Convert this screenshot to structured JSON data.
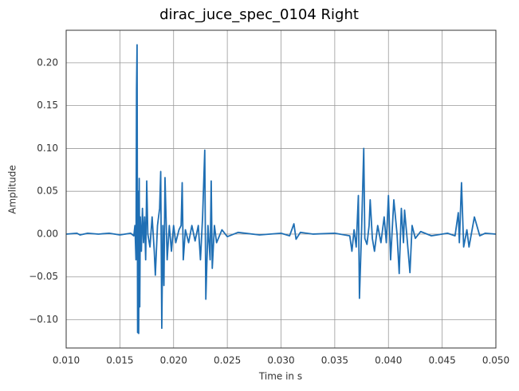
{
  "chart_data": {
    "type": "line",
    "title": "dirac_juce_spec_0104 Right",
    "xlabel": "Time in s",
    "ylabel": "Amplitude",
    "color": "#1f6fb4",
    "grid": true,
    "xlim": [
      0.01,
      0.05
    ],
    "ylim": [
      -0.133,
      0.238
    ],
    "xticks": [
      {
        "value": 0.01,
        "label": "0.010"
      },
      0.015,
      {
        "value": 0.02,
        "label": "0.020"
      },
      0.025,
      {
        "value": 0.03,
        "label": "0.030"
      },
      0.035,
      {
        "value": 0.04,
        "label": "0.040"
      },
      0.045,
      {
        "value": 0.05,
        "label": "0.050"
      }
    ],
    "yticks": [
      {
        "value": -0.1,
        "label": "−0.10"
      },
      {
        "value": -0.05,
        "label": "−0.05"
      },
      {
        "value": 0,
        "label": "0.00"
      },
      0.05,
      {
        "value": 0.1,
        "label": "0.10"
      },
      0.15,
      {
        "value": 0.2,
        "label": "0.20"
      }
    ],
    "x": [
      0.01,
      0.011,
      0.0113,
      0.012,
      0.013,
      0.014,
      0.015,
      0.016,
      0.0163,
      0.0164,
      0.0165,
      0.01655,
      0.0166,
      0.01665,
      0.0167,
      0.01675,
      0.0168,
      0.01685,
      0.0169,
      0.017,
      0.0171,
      0.0172,
      0.0173,
      0.0174,
      0.0175,
      0.0176,
      0.0178,
      0.018,
      0.0182,
      0.0183,
      0.0185,
      0.0187,
      0.0188,
      0.0189,
      0.019,
      0.0191,
      0.0192,
      0.0194,
      0.0196,
      0.0198,
      0.02,
      0.0202,
      0.0205,
      0.0207,
      0.0208,
      0.0209,
      0.0211,
      0.0214,
      0.0217,
      0.022,
      0.0223,
      0.0225,
      0.0227,
      0.0229,
      0.023,
      0.0232,
      0.0234,
      0.0235,
      0.0236,
      0.0238,
      0.024,
      0.0245,
      0.025,
      0.026,
      0.028,
      0.03,
      0.0308,
      0.0312,
      0.0314,
      0.0318,
      0.033,
      0.035,
      0.0364,
      0.0366,
      0.0368,
      0.037,
      0.0372,
      0.0373,
      0.0375,
      0.0377,
      0.0378,
      0.038,
      0.0382,
      0.0383,
      0.0385,
      0.0387,
      0.039,
      0.0393,
      0.0396,
      0.0398,
      0.04,
      0.0402,
      0.0405,
      0.0408,
      0.041,
      0.0412,
      0.0414,
      0.0415,
      0.0417,
      0.042,
      0.0422,
      0.0425,
      0.043,
      0.044,
      0.0455,
      0.0462,
      0.0465,
      0.0466,
      0.0468,
      0.047,
      0.0473,
      0.0475,
      0.048,
      0.0485,
      0.049,
      0.05
    ],
    "values": [
      0.0,
      0.001,
      -0.001,
      0.001,
      0.0,
      0.001,
      -0.001,
      0.001,
      -0.002,
      0.01,
      -0.03,
      0.17,
      0.221,
      -0.115,
      0.05,
      -0.116,
      0.065,
      -0.085,
      0.02,
      -0.02,
      0.03,
      -0.01,
      0.02,
      -0.03,
      0.062,
      0.0,
      -0.015,
      0.02,
      -0.02,
      -0.048,
      0.01,
      0.03,
      0.073,
      -0.11,
      0.01,
      -0.06,
      0.066,
      -0.03,
      0.01,
      -0.02,
      0.01,
      -0.01,
      0.005,
      0.01,
      0.06,
      -0.03,
      0.005,
      -0.01,
      0.01,
      -0.008,
      0.01,
      -0.03,
      0.02,
      0.098,
      -0.076,
      0.01,
      -0.03,
      0.062,
      -0.04,
      0.01,
      -0.01,
      0.005,
      -0.003,
      0.002,
      -0.001,
      0.001,
      -0.002,
      0.012,
      -0.006,
      0.002,
      0.0,
      0.001,
      -0.002,
      -0.02,
      0.005,
      -0.015,
      0.045,
      -0.075,
      0.005,
      0.1,
      -0.005,
      -0.012,
      0.01,
      0.04,
      -0.005,
      -0.02,
      0.01,
      -0.01,
      0.02,
      -0.01,
      0.045,
      -0.03,
      0.04,
      0.0,
      -0.046,
      0.03,
      -0.01,
      0.028,
      0.0,
      -0.045,
      0.01,
      -0.005,
      0.003,
      -0.002,
      0.001,
      -0.002,
      0.025,
      -0.01,
      0.06,
      -0.015,
      0.005,
      -0.015,
      0.02,
      -0.002,
      0.001,
      0.0
    ]
  }
}
